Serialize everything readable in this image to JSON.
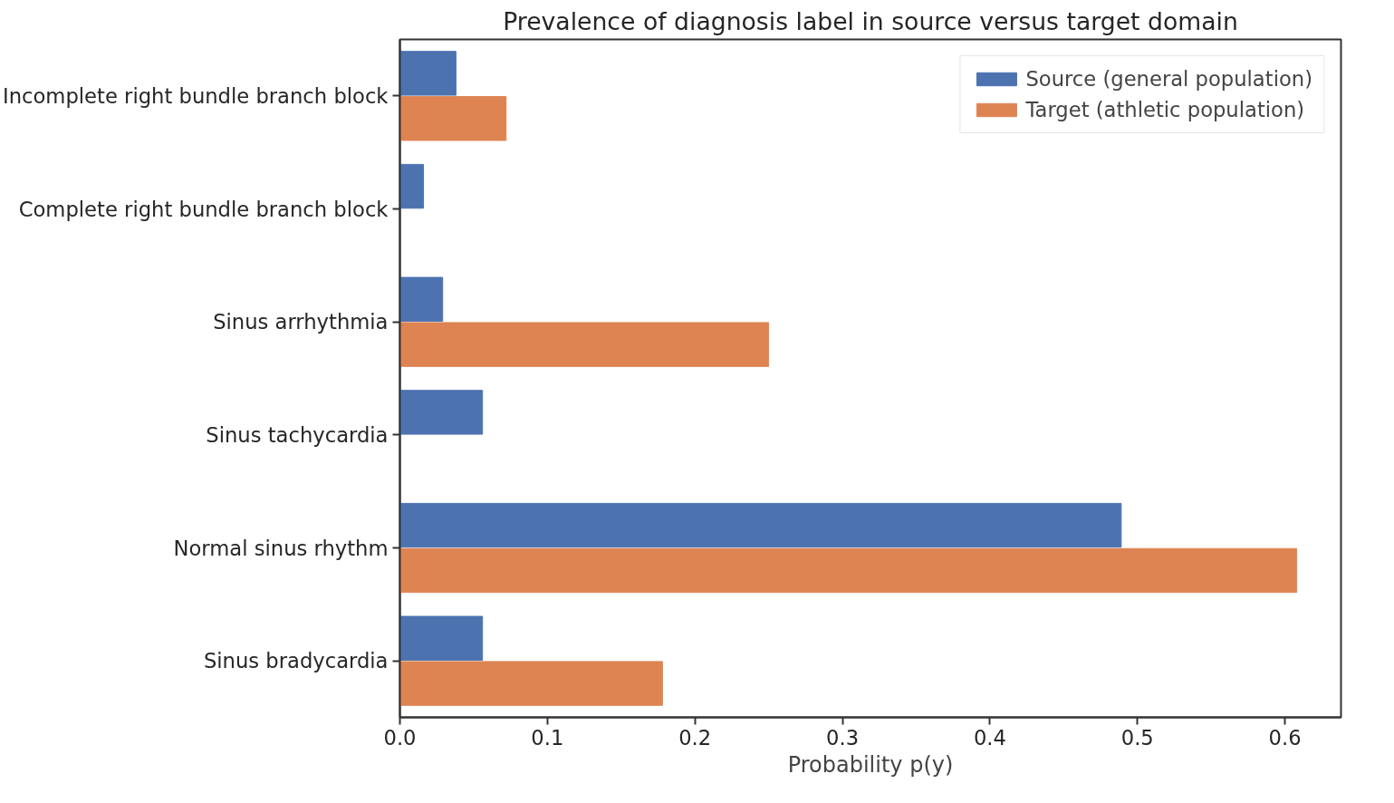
{
  "chart_data": {
    "type": "bar",
    "orientation": "horizontal",
    "title": "Prevalence of diagnosis label in source versus target domain",
    "xlabel": "Probability p(y)",
    "categories": [
      "Incomplete right bundle branch block",
      "Complete right bundle branch block",
      "Sinus arrhythmia",
      "Sinus tachycardia",
      "Normal sinus rhythm",
      "Sinus bradycardia"
    ],
    "series": [
      {
        "name": "Source (general population)",
        "color": "#4c72b0",
        "values": [
          0.038,
          0.016,
          0.029,
          0.056,
          0.489,
          0.056
        ]
      },
      {
        "name": "Target (athletic population)",
        "color": "#dd8452",
        "values": [
          0.072,
          0,
          0.25,
          0,
          0.608,
          0.178
        ]
      }
    ],
    "xlim": [
      0,
      0.638
    ],
    "xticks": [
      {
        "value": 0,
        "label": "0.0"
      },
      {
        "value": 0.1,
        "label": "0.1"
      },
      {
        "value": 0.2,
        "label": "0.2"
      },
      {
        "value": 0.3,
        "label": "0.3"
      },
      {
        "value": 0.4,
        "label": "0.4"
      },
      {
        "value": 0.5,
        "label": "0.5"
      },
      {
        "value": 0.6,
        "label": "0.6"
      }
    ],
    "grid": false,
    "legend": "top right"
  }
}
